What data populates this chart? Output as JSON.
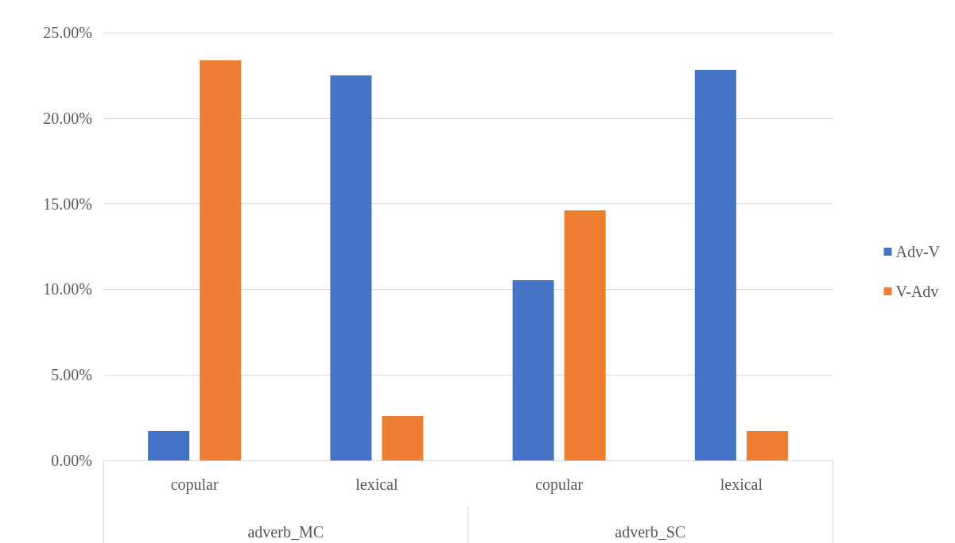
{
  "chart_data": {
    "type": "bar",
    "categories": [
      "copular",
      "lexical",
      "copular",
      "lexical"
    ],
    "annotations": [
      "adverb_MC",
      "adverb_SC"
    ],
    "series": [
      {
        "name": "Adv-V",
        "color": "#4472c4",
        "values": [
          1.72,
          22.5,
          10.53,
          22.82
        ]
      },
      {
        "name": "V-Adv",
        "color": "#ed7d31",
        "values": [
          23.38,
          2.6,
          14.61,
          1.72
        ]
      }
    ],
    "ylim": [
      0,
      25
    ],
    "yticks": [
      {
        "value": 0,
        "label": "0.00%"
      },
      {
        "value": 5,
        "label": "5.00%"
      },
      {
        "value": 10,
        "label": "10.00%"
      },
      {
        "value": 15,
        "label": "15.00%"
      },
      {
        "value": 20,
        "label": "20.00%"
      },
      {
        "value": 25,
        "label": "25.00%"
      }
    ],
    "grid": "y",
    "legend": "right"
  }
}
